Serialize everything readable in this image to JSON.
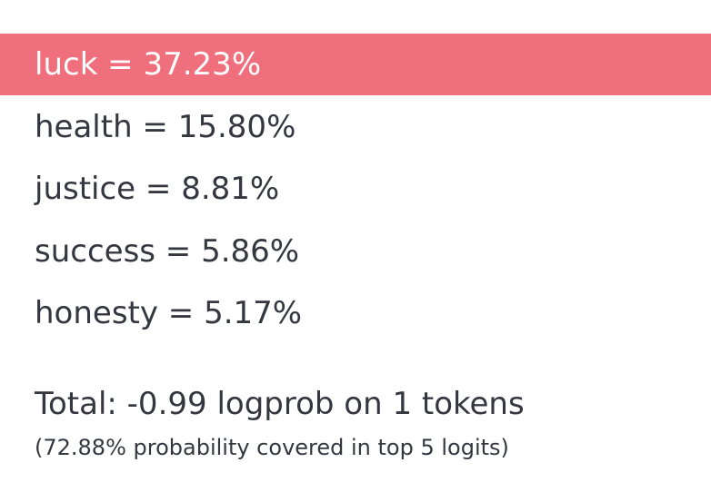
{
  "tokens": [
    {
      "text": "luck = 37.23%",
      "selected": true
    },
    {
      "text": "health = 15.80%",
      "selected": false
    },
    {
      "text": "justice = 8.81%",
      "selected": false
    },
    {
      "text": "success = 5.86%",
      "selected": false
    },
    {
      "text": "honesty = 5.17%",
      "selected": false
    }
  ],
  "summary": {
    "total": "Total: -0.99 logprob on 1 tokens",
    "coverage": "(72.88% probability covered in top 5 logits)"
  }
}
